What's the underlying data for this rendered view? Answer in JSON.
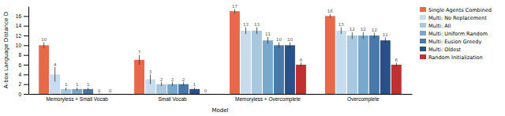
{
  "chart_data": {
    "type": "bar",
    "xlabel": "Model",
    "ylabel": "A-box Language Distance D",
    "categories": [
      "Memoryless + Small Vocab",
      "Small Vocab",
      "Memoryless + Overcomplete",
      "Overcomplete"
    ],
    "series": [
      {
        "name": "Single Agents Combined",
        "color": "#E8694A",
        "values": [
          10,
          7,
          17,
          16
        ],
        "errors": [
          0.6,
          1.0,
          0.4,
          0.4
        ]
      },
      {
        "name": "Multi: No Replacement",
        "color": "#C8DCF0",
        "values": [
          4,
          3,
          13,
          13
        ],
        "errors": [
          1.5,
          1.0,
          0.7,
          0.7
        ]
      },
      {
        "name": "Multi: All",
        "color": "#A8C8E0",
        "values": [
          1,
          2,
          13,
          12
        ],
        "errors": [
          0.3,
          0.4,
          0.7,
          0.7
        ]
      },
      {
        "name": "Multi: Uniform Random",
        "color": "#78A8CC",
        "values": [
          1,
          2,
          11,
          12
        ],
        "errors": [
          0.3,
          0.4,
          0.7,
          0.7
        ]
      },
      {
        "name": "Multi: Eusion Greedy",
        "color": "#4878A8",
        "values": [
          1,
          2,
          10,
          12
        ],
        "errors": [
          0.3,
          0.4,
          0.6,
          0.6
        ]
      },
      {
        "name": "Multi: Oldest",
        "color": "#2A5088",
        "values": [
          0,
          1,
          10,
          11
        ],
        "errors": [
          0.1,
          0.3,
          0.6,
          0.6
        ]
      },
      {
        "name": "Random Initialization",
        "color": "#C03030",
        "values": [
          0,
          0,
          6,
          6
        ],
        "errors": [
          0.05,
          0.05,
          0.4,
          0.4
        ]
      }
    ],
    "ylim": [
      0,
      18
    ],
    "yticks": [
      0,
      2,
      4,
      6,
      8,
      10,
      12,
      14,
      16
    ],
    "grid": false,
    "legend": "right",
    "data_labels": true
  }
}
